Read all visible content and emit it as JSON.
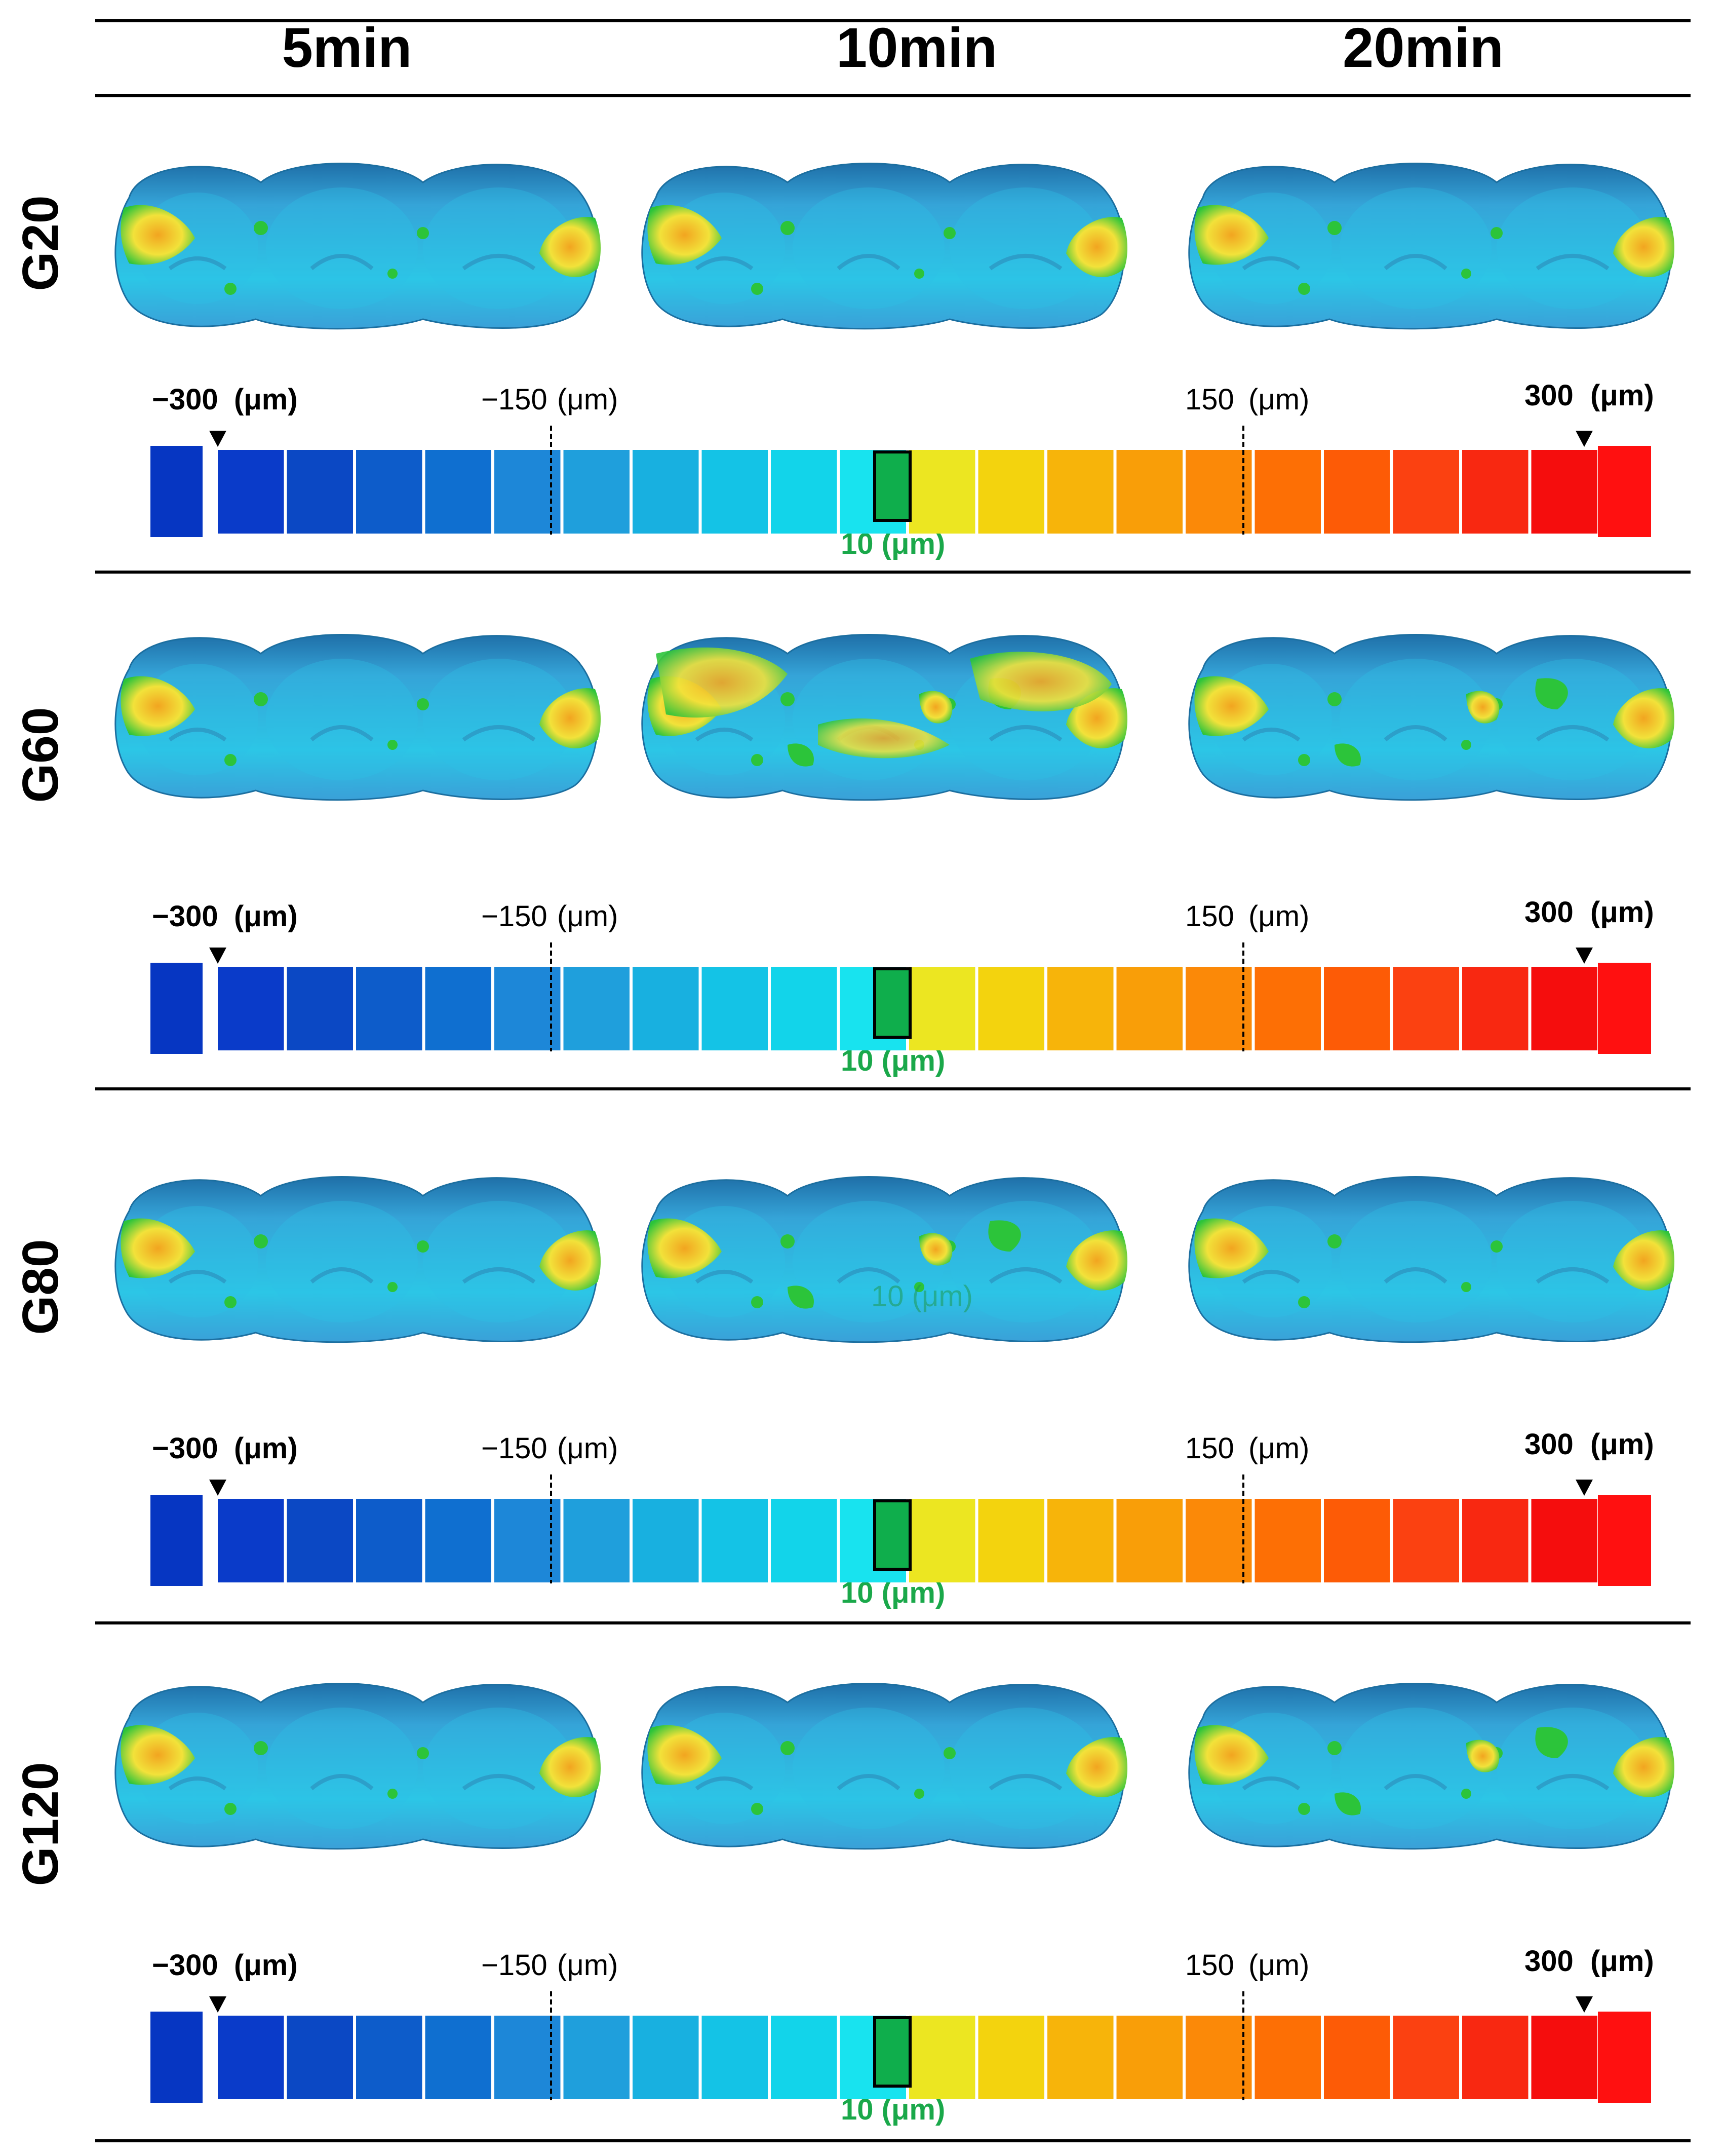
{
  "columns": [
    "5min",
    "10min",
    "20min"
  ],
  "rows": [
    {
      "label": "G20"
    },
    {
      "label": "G60"
    },
    {
      "label": "G80"
    },
    {
      "label": "G120"
    }
  ],
  "scale": {
    "min_label": "−300",
    "min_unit": "(μm)",
    "neg_mid_label": "−150",
    "neg_mid_unit": "(μm)",
    "pos_mid_label": "150",
    "pos_mid_unit": "(μm)",
    "max_label": "300",
    "max_unit": "(μm)",
    "center_label": "10 (μm)",
    "segment_colors": [
      "#0a3bc9",
      "#0b48c4",
      "#0d5cca",
      "#0f6fd0",
      "#1d87d8",
      "#1f9fdc",
      "#18b0e0",
      "#14c3e6",
      "#12d4ea",
      "#18e3ef",
      "#ece621",
      "#f3d30e",
      "#f7b40a",
      "#f99e08",
      "#fb8908",
      "#fd6f05",
      "#fd5b06",
      "#fb4111",
      "#f82811",
      "#f50d0d"
    ],
    "out_low_color": "#0636c2",
    "out_high_color": "#ff1010",
    "center_color": "#0fae4c"
  },
  "ghost_label": "10 (μm)"
}
